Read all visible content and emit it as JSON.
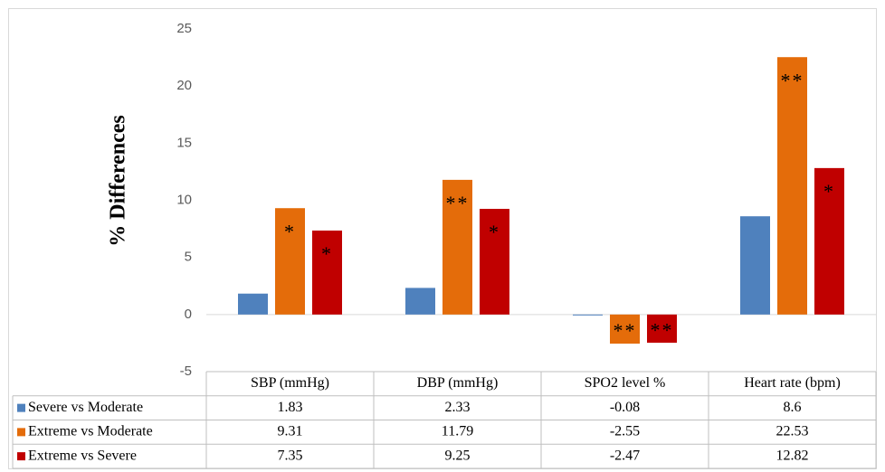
{
  "chart_data": {
    "type": "bar",
    "ylabel": "% Differences",
    "categories": [
      "SBP (mmHg)",
      "DBP (mmHg)",
      "SPO2  level %",
      "Heart rate (bpm)"
    ],
    "series": [
      {
        "name": "Severe vs Moderate",
        "color": "#4f81bd",
        "values": [
          1.83,
          2.33,
          -0.08,
          8.6
        ]
      },
      {
        "name": "Extreme vs Moderate",
        "color": "#e46c0a",
        "values": [
          9.31,
          11.79,
          -2.55,
          22.53
        ],
        "significance": [
          "*",
          "**",
          "**",
          "**"
        ]
      },
      {
        "name": "Extreme vs Severe",
        "color": "#c00000",
        "values": [
          7.35,
          9.25,
          -2.47,
          12.82
        ],
        "significance": [
          "*",
          "*",
          "**",
          "*"
        ]
      }
    ],
    "ylim": [
      -5,
      25
    ],
    "yticks": [
      -5,
      0,
      5,
      10,
      15,
      20,
      25
    ],
    "grid": false
  }
}
